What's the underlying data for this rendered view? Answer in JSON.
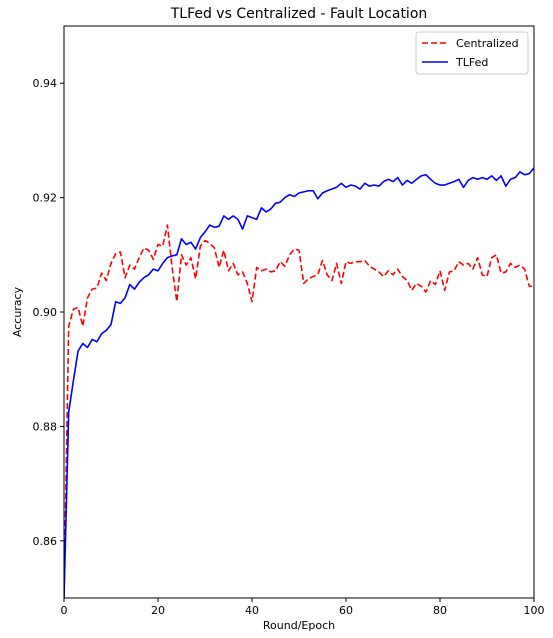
{
  "chart_data": {
    "type": "line",
    "title": "TLFed vs Centralized - Fault Location",
    "xlabel": "Round/Epoch",
    "ylabel": "Accuracy",
    "xlim": [
      0,
      100
    ],
    "ylim": [
      0.85,
      0.95
    ],
    "xticks": [
      0,
      20,
      40,
      60,
      80,
      100
    ],
    "yticks": [
      0.86,
      0.88,
      0.9,
      0.92,
      0.94
    ],
    "ytick_labels": [
      "0.86",
      "0.88",
      "0.90",
      "0.92",
      "0.94"
    ],
    "grid": false,
    "legend_position": "top-right",
    "series": [
      {
        "name": "Centralized",
        "color": "#ff0000",
        "dash": "dashed",
        "x": [
          0,
          1,
          2,
          3,
          4,
          5,
          6,
          7,
          8,
          9,
          10,
          11,
          12,
          13,
          14,
          15,
          16,
          17,
          18,
          19,
          20,
          21,
          22,
          23,
          24,
          25,
          26,
          27,
          28,
          29,
          30,
          31,
          32,
          33,
          34,
          35,
          36,
          37,
          38,
          39,
          40,
          41,
          42,
          43,
          44,
          45,
          46,
          47,
          48,
          49,
          50,
          51,
          52,
          53,
          54,
          55,
          56,
          57,
          58,
          59,
          60,
          61,
          62,
          63,
          64,
          65,
          66,
          67,
          68,
          69,
          70,
          71,
          72,
          73,
          74,
          75,
          76,
          77,
          78,
          79,
          80,
          81,
          82,
          83,
          84,
          85,
          86,
          87,
          88,
          89,
          90,
          91,
          92,
          93,
          94,
          95,
          96,
          97,
          98,
          99,
          100
        ],
        "values": [
          0.85,
          0.8975,
          0.9005,
          0.9008,
          0.8975,
          0.9025,
          0.904,
          0.9042,
          0.9068,
          0.9055,
          0.9085,
          0.9102,
          0.9105,
          0.906,
          0.9082,
          0.9075,
          0.9095,
          0.9112,
          0.9108,
          0.9092,
          0.9118,
          0.9115,
          0.9152,
          0.9078,
          0.9018,
          0.91,
          0.9082,
          0.9095,
          0.9058,
          0.9115,
          0.9125,
          0.912,
          0.9112,
          0.9078,
          0.9108,
          0.9072,
          0.9085,
          0.9065,
          0.907,
          0.905,
          0.9018,
          0.9078,
          0.9072,
          0.9075,
          0.907,
          0.9072,
          0.9088,
          0.908,
          0.91,
          0.911,
          0.9108,
          0.905,
          0.9058,
          0.9062,
          0.9065,
          0.909,
          0.9065,
          0.9055,
          0.9085,
          0.905,
          0.9088,
          0.9085,
          0.9088,
          0.9088,
          0.909,
          0.908,
          0.9075,
          0.907,
          0.9062,
          0.9072,
          0.9065,
          0.9075,
          0.9062,
          0.9055,
          0.9038,
          0.905,
          0.9045,
          0.9035,
          0.9055,
          0.9048,
          0.9072,
          0.9038,
          0.907,
          0.9072,
          0.9088,
          0.9082,
          0.9085,
          0.9075,
          0.9095,
          0.9065,
          0.9062,
          0.9095,
          0.91,
          0.9068,
          0.907,
          0.9085,
          0.9078,
          0.9082,
          0.9075,
          0.9045,
          0.9045
        ]
      },
      {
        "name": "TLFed",
        "color": "#0000ff",
        "dash": "solid",
        "x": [
          0,
          1,
          2,
          3,
          4,
          5,
          6,
          7,
          8,
          9,
          10,
          11,
          12,
          13,
          14,
          15,
          16,
          17,
          18,
          19,
          20,
          21,
          22,
          23,
          24,
          25,
          26,
          27,
          28,
          29,
          30,
          31,
          32,
          33,
          34,
          35,
          36,
          37,
          38,
          39,
          40,
          41,
          42,
          43,
          44,
          45,
          46,
          47,
          48,
          49,
          50,
          51,
          52,
          53,
          54,
          55,
          56,
          57,
          58,
          59,
          60,
          61,
          62,
          63,
          64,
          65,
          66,
          67,
          68,
          69,
          70,
          71,
          72,
          73,
          74,
          75,
          76,
          77,
          78,
          79,
          80,
          81,
          82,
          83,
          84,
          85,
          86,
          87,
          88,
          89,
          90,
          91,
          92,
          93,
          94,
          95,
          96,
          97,
          98,
          99,
          100
        ],
        "values": [
          0.85,
          0.8825,
          0.888,
          0.8932,
          0.8945,
          0.8938,
          0.8952,
          0.8948,
          0.8962,
          0.8968,
          0.8978,
          0.9018,
          0.9015,
          0.9025,
          0.9048,
          0.904,
          0.9052,
          0.906,
          0.9065,
          0.9075,
          0.9072,
          0.9085,
          0.9095,
          0.9098,
          0.91,
          0.9128,
          0.9118,
          0.9122,
          0.911,
          0.913,
          0.914,
          0.9152,
          0.9148,
          0.915,
          0.9168,
          0.9162,
          0.9168,
          0.9162,
          0.9145,
          0.9168,
          0.9165,
          0.9162,
          0.9182,
          0.9175,
          0.918,
          0.919,
          0.9192,
          0.92,
          0.9205,
          0.9202,
          0.9208,
          0.921,
          0.9212,
          0.9212,
          0.9198,
          0.9208,
          0.9212,
          0.9215,
          0.9218,
          0.9225,
          0.9218,
          0.9222,
          0.922,
          0.9215,
          0.9225,
          0.922,
          0.9222,
          0.922,
          0.9228,
          0.9232,
          0.9228,
          0.9235,
          0.9222,
          0.923,
          0.9225,
          0.9232,
          0.9238,
          0.924,
          0.9232,
          0.9225,
          0.9222,
          0.9222,
          0.9225,
          0.9228,
          0.9232,
          0.9218,
          0.923,
          0.9235,
          0.9232,
          0.9235,
          0.9232,
          0.9238,
          0.923,
          0.9238,
          0.922,
          0.9232,
          0.9235,
          0.9245,
          0.924,
          0.9242,
          0.9252
        ]
      }
    ]
  }
}
